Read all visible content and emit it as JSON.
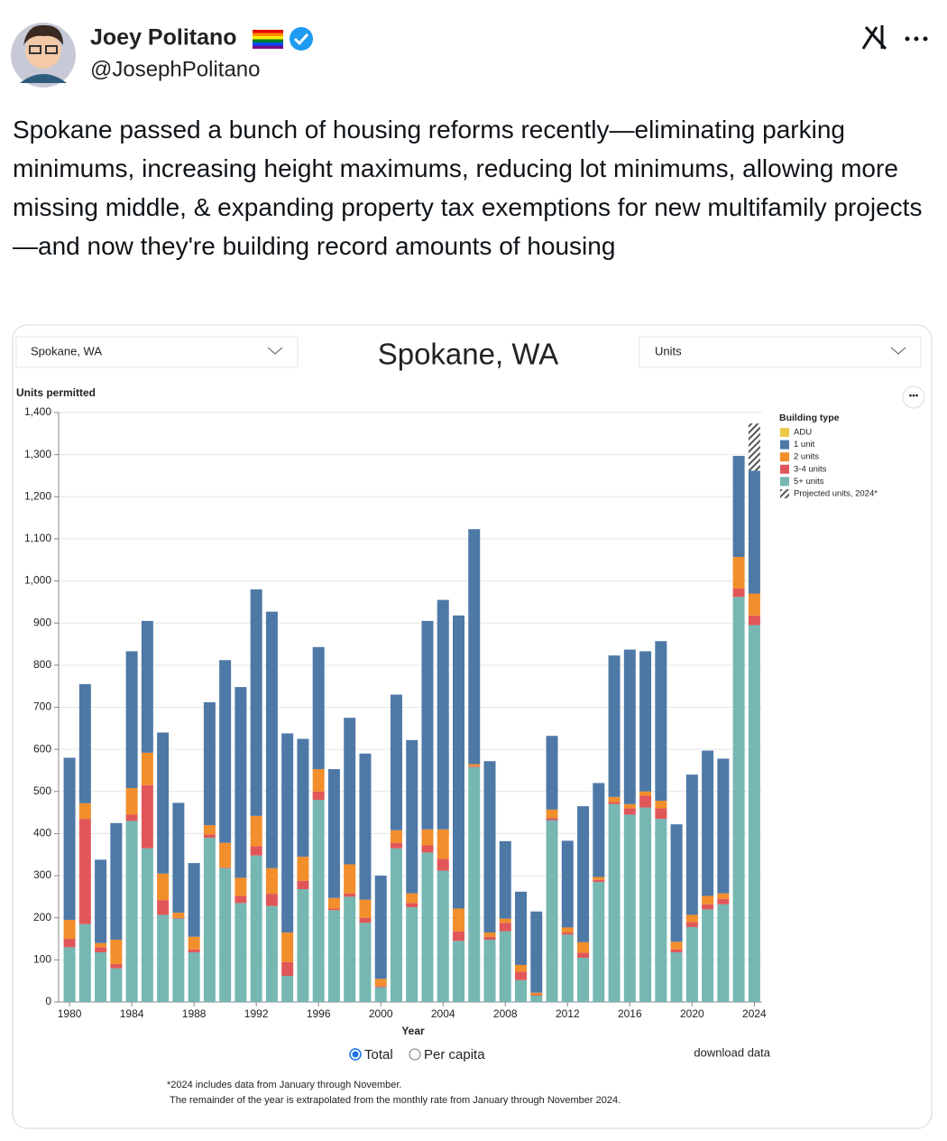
{
  "tweet": {
    "author": "Joey Politano",
    "handle": "@JosephPolitano",
    "text": "Spokane passed a bunch of housing reforms recently—eliminating parking minimums, increasing height maximums, reducing lot minimums, allowing more missing middle, & expanding property tax exemptions for new multifamily projects—and now they're building record amounts of housing"
  },
  "controls": {
    "place": "Spokane, WA",
    "measure": "Units",
    "radio": [
      "Total",
      "Per capita"
    ],
    "download": "download data",
    "footnote": [
      "*2024 includes data from January through November.",
      "The remainder of the year is extrapolated from the monthly rate from January through November 2024."
    ]
  },
  "chart_data": {
    "type": "bar",
    "stacked": true,
    "title": "Spokane, WA",
    "y_label": "Units permitted",
    "x_label": "Year",
    "legend_title": "Building type",
    "x": [
      1980,
      1981,
      1982,
      1983,
      1984,
      1985,
      1986,
      1987,
      1988,
      1989,
      1990,
      1991,
      1992,
      1993,
      1994,
      1995,
      1996,
      1997,
      1998,
      1999,
      2000,
      2001,
      2002,
      2003,
      2004,
      2005,
      2006,
      2007,
      2008,
      2009,
      2010,
      2011,
      2012,
      2013,
      2014,
      2015,
      2016,
      2017,
      2018,
      2019,
      2020,
      2021,
      2022,
      2023,
      2024
    ],
    "xlim": [
      1979.3,
      2024.5
    ],
    "xticks": [
      1980,
      1984,
      1988,
      1992,
      1996,
      2000,
      2004,
      2008,
      2012,
      2016,
      2020,
      2024
    ],
    "ylim": [
      0,
      1400
    ],
    "yticks": [
      0,
      100,
      200,
      300,
      400,
      500,
      600,
      700,
      800,
      900,
      {
        "value": 1000,
        "label": "1,000"
      },
      {
        "value": 1100,
        "label": "1,100"
      },
      {
        "value": 1200,
        "label": "1,200"
      },
      {
        "value": 1300,
        "label": "1,300"
      },
      {
        "value": 1400,
        "label": "1,400"
      }
    ],
    "grid": true,
    "series": [
      {
        "name": "ADU",
        "color": "#edc948",
        "values": [
          0,
          0,
          0,
          0,
          0,
          0,
          0,
          0,
          0,
          0,
          0,
          0,
          0,
          0,
          0,
          0,
          0,
          0,
          0,
          0,
          0,
          0,
          0,
          0,
          0,
          0,
          0,
          0,
          0,
          0,
          0,
          0,
          0,
          0,
          0,
          0,
          0,
          0,
          0,
          0,
          0,
          0,
          0,
          0,
          0
        ]
      },
      {
        "name": "1 unit",
        "color": "#4e79a7",
        "values": [
          385,
          283,
          198,
          277,
          325,
          313,
          335,
          261,
          175,
          292,
          434,
          453,
          538,
          609,
          473,
          280,
          290,
          306,
          348,
          347,
          245,
          322,
          364,
          495,
          545,
          696,
          558,
          407,
          184,
          174,
          193,
          175,
          206,
          323,
          223,
          336,
          367,
          333,
          379,
          279,
          333,
          345,
          320,
          240,
          292
        ]
      },
      {
        "name": "2 units",
        "color": "#f28e2b",
        "values": [
          45,
          37,
          10,
          58,
          63,
          77,
          63,
          12,
          30,
          22,
          58,
          43,
          72,
          61,
          70,
          57,
          53,
          25,
          69,
          43,
          17,
          30,
          23,
          38,
          70,
          54,
          5,
          10,
          10,
          16,
          5,
          20,
          12,
          25,
          7,
          12,
          10,
          10,
          18,
          18,
          17,
          20,
          13,
          75,
          52
        ]
      },
      {
        "name": "3-4 units",
        "color": "#e15759",
        "values": [
          20,
          250,
          12,
          10,
          15,
          150,
          35,
          2,
          7,
          8,
          2,
          17,
          22,
          29,
          33,
          20,
          20,
          4,
          8,
          12,
          3,
          13,
          10,
          17,
          28,
          23,
          2,
          7,
          20,
          20,
          2,
          5,
          5,
          12,
          5,
          5,
          15,
          28,
          25,
          7,
          12,
          12,
          13,
          20,
          23
        ]
      },
      {
        "name": "5+ units",
        "color": "#76b7b2",
        "values": [
          130,
          185,
          118,
          80,
          430,
          365,
          207,
          198,
          118,
          390,
          318,
          235,
          348,
          228,
          62,
          268,
          480,
          218,
          250,
          188,
          35,
          365,
          225,
          355,
          312,
          145,
          558,
          148,
          168,
          52,
          15,
          432,
          160,
          105,
          285,
          470,
          445,
          462,
          435,
          118,
          178,
          220,
          232,
          962,
          895
        ]
      },
      {
        "name": "Projected units, 2024*",
        "color": "#555555",
        "pattern": "hatch",
        "values": [
          null,
          null,
          null,
          null,
          null,
          null,
          null,
          null,
          null,
          null,
          null,
          null,
          null,
          null,
          null,
          null,
          null,
          null,
          null,
          null,
          null,
          null,
          null,
          null,
          null,
          null,
          null,
          null,
          null,
          null,
          null,
          null,
          null,
          null,
          null,
          null,
          null,
          null,
          null,
          null,
          null,
          null,
          null,
          null,
          112
        ]
      }
    ]
  }
}
